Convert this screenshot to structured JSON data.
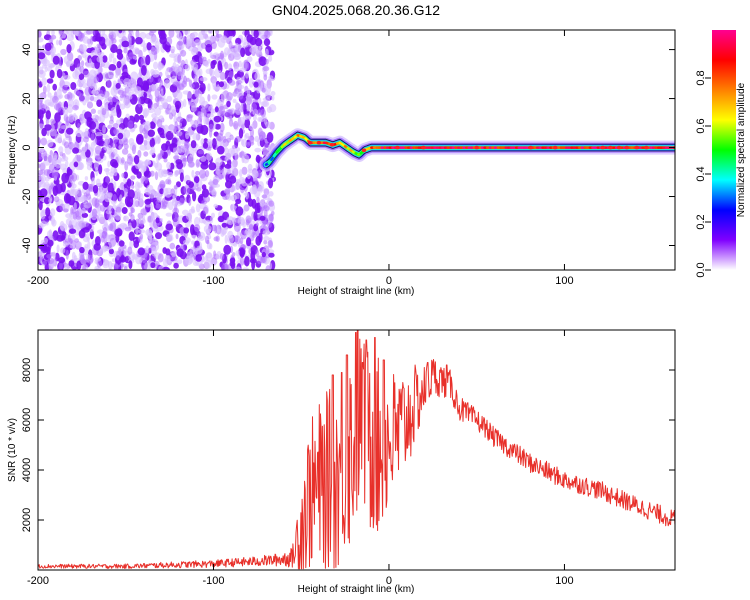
{
  "title": "GN04.2025.068.20.36.G12",
  "chart_data": [
    {
      "type": "heatmap",
      "xlabel": "Height of straight line (km)",
      "ylabel": "Frequency (Hz)",
      "xlim": [
        -200,
        163
      ],
      "ylim": [
        -50,
        48
      ],
      "xticks": [
        -200,
        -100,
        0,
        100
      ],
      "yticks": [
        -40,
        -20,
        0,
        20,
        40
      ],
      "colorbar": {
        "label": "Normalized spectral amplitude",
        "range": [
          0,
          1
        ],
        "ticks": [
          0.0,
          0.2,
          0.4,
          0.6,
          0.8
        ],
        "tick_labels": [
          "0.0",
          "0.2",
          "0.4",
          "0.6",
          "0.8"
        ],
        "colormap": "rainbow",
        "colors": [
          "#ffffff",
          "#8000ff",
          "#0000ff",
          "#00ffff",
          "#00ff00",
          "#ffff00",
          "#ff8000",
          "#ff0000",
          "#ff0090"
        ]
      },
      "noise_region_x": [
        -200,
        -66
      ],
      "noise_amplitude": 0.1,
      "ridge": {
        "x": [
          -70,
          -68,
          -64,
          -60,
          -56,
          -52,
          -48,
          -45,
          -40,
          -36,
          -32,
          -28,
          -24,
          -20,
          -17,
          -14,
          -10,
          -5,
          0,
          20,
          40,
          60,
          80,
          100,
          120,
          140,
          163
        ],
        "frequency": [
          -7,
          -6,
          -2,
          1,
          3,
          5,
          4,
          2,
          2,
          2,
          1,
          2,
          0,
          -2,
          -3,
          -1,
          0,
          0,
          0,
          0,
          0,
          0,
          0,
          0,
          0,
          0,
          0
        ],
        "amplitude": [
          0.3,
          0.35,
          0.45,
          0.55,
          0.6,
          0.65,
          0.7,
          0.8,
          0.8,
          0.85,
          0.8,
          0.75,
          0.7,
          0.6,
          0.55,
          0.6,
          0.85,
          0.9,
          0.95,
          0.9,
          0.9,
          0.9,
          0.9,
          0.9,
          0.9,
          0.9,
          0.9
        ]
      }
    },
    {
      "type": "line",
      "xlabel": "Height of straight line (km)",
      "ylabel": "SNR (10 * v/v)",
      "xlim": [
        -200,
        163
      ],
      "ylim": [
        0,
        9600
      ],
      "xticks": [
        -200,
        -100,
        0,
        100
      ],
      "yticks": [
        2000,
        4000,
        6000,
        8000
      ],
      "series": [
        {
          "color": "#e8302a",
          "x": [
            -200,
            -150,
            -100,
            -75,
            -65,
            -55,
            -50,
            -45,
            -40,
            -35,
            -30,
            -25,
            -20,
            -18,
            -15,
            -10,
            -5,
            0,
            5,
            10,
            15,
            20,
            25,
            30,
            35,
            40,
            45,
            50,
            55,
            60,
            70,
            80,
            100,
            120,
            140,
            163
          ],
          "y": [
            150,
            150,
            250,
            350,
            400,
            500,
            1800,
            3000,
            3300,
            3600,
            3700,
            4500,
            5200,
            6500,
            5400,
            5000,
            4800,
            5200,
            5400,
            6000,
            6600,
            7200,
            7800,
            7600,
            7400,
            6500,
            6200,
            6000,
            5700,
            5300,
            4800,
            4300,
            3600,
            3200,
            2600,
            2000
          ],
          "spread": [
            80,
            90,
            150,
            200,
            250,
            400,
            2500,
            3000,
            3400,
            3600,
            3800,
            4000,
            4200,
            4500,
            4000,
            3800,
            3600,
            3000,
            2600,
            2200,
            1600,
            1000,
            800,
            700,
            600,
            500,
            500,
            450,
            400,
            400,
            400,
            400,
            380,
            380,
            380,
            380
          ],
          "peaks": [
            [
              -32,
              7800
            ],
            [
              -27,
              7900
            ],
            [
              -24,
              8600
            ],
            [
              -19,
              9500
            ],
            [
              -15,
              8300
            ],
            [
              -13,
              9200
            ],
            [
              -8,
              9300
            ],
            [
              -3,
              8400
            ],
            [
              22,
              8300
            ],
            [
              33,
              8200
            ]
          ]
        }
      ]
    }
  ]
}
